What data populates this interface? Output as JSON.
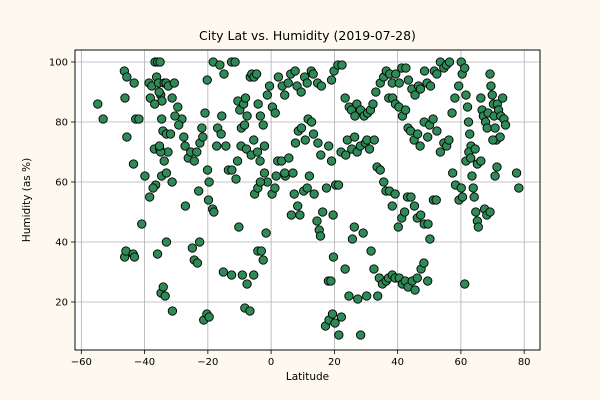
{
  "chart_data": {
    "type": "scatter",
    "title": "City Lat vs. Humidity (2019-07-28)",
    "xlabel": "Latitude",
    "ylabel": "Humidity (as %)",
    "xlim": [
      -62,
      85
    ],
    "ylim": [
      4,
      104
    ],
    "xticks": [
      -60,
      -40,
      -20,
      0,
      20,
      40,
      60,
      80
    ],
    "yticks": [
      20,
      40,
      60,
      80,
      100
    ],
    "xtick_labels": [
      "−60",
      "−40",
      "−20",
      "0",
      "20",
      "40",
      "60",
      "80"
    ],
    "ytick_labels": [
      "20",
      "40",
      "60",
      "80",
      "100"
    ],
    "grid": true,
    "marker_color": "#2e8b57",
    "marker_edge": "#000000",
    "points": [
      [
        -54.8,
        86
      ],
      [
        -53.1,
        81
      ],
      [
        -46.4,
        97
      ],
      [
        -45.6,
        95
      ],
      [
        -46.2,
        88
      ],
      [
        -45.6,
        75
      ],
      [
        -43.3,
        93
      ],
      [
        -42.8,
        81
      ],
      [
        -43.5,
        66
      ],
      [
        -41.8,
        81
      ],
      [
        -40.9,
        46
      ],
      [
        -46.3,
        35
      ],
      [
        -45.9,
        37
      ],
      [
        -43.6,
        36
      ],
      [
        -43.2,
        35
      ],
      [
        -39.9,
        62
      ],
      [
        -38.6,
        93
      ],
      [
        -38.2,
        88
      ],
      [
        -37.7,
        92
      ],
      [
        -36.7,
        100
      ],
      [
        -35.9,
        100
      ],
      [
        -35.1,
        100
      ],
      [
        -36.2,
        95
      ],
      [
        -35.6,
        93
      ],
      [
        -34.9,
        89
      ],
      [
        -34.5,
        87
      ],
      [
        -33.8,
        93
      ],
      [
        -33.2,
        93
      ],
      [
        -32.5,
        92
      ],
      [
        -31.3,
        88
      ],
      [
        -30.6,
        93
      ],
      [
        -29.5,
        85
      ],
      [
        -28.2,
        81
      ],
      [
        -36.8,
        86
      ],
      [
        -35.4,
        90
      ],
      [
        -34.6,
        81
      ],
      [
        -34.2,
        77
      ],
      [
        -33.1,
        76
      ],
      [
        -32.6,
        70
      ],
      [
        -31.8,
        76
      ],
      [
        -30.4,
        82
      ],
      [
        -29.2,
        79
      ],
      [
        -27.6,
        75
      ],
      [
        -27.2,
        72
      ],
      [
        -26.2,
        68
      ],
      [
        -25.4,
        70
      ],
      [
        -24.3,
        67
      ],
      [
        -23.5,
        70
      ],
      [
        -22.5,
        73
      ],
      [
        -21.9,
        78
      ],
      [
        -36.9,
        71
      ],
      [
        -35.2,
        71
      ],
      [
        -34.9,
        70
      ],
      [
        -34.6,
        62
      ],
      [
        -33.1,
        63
      ],
      [
        -31.3,
        60
      ],
      [
        -36.5,
        59
      ],
      [
        -35.3,
        72
      ],
      [
        -33.8,
        67
      ],
      [
        -38.4,
        55
      ],
      [
        -37.3,
        58
      ],
      [
        -35.9,
        36
      ],
      [
        -34.8,
        23
      ],
      [
        -34.1,
        25
      ],
      [
        -33.5,
        22
      ],
      [
        -31.2,
        17
      ],
      [
        -33.1,
        40
      ],
      [
        -27.1,
        52
      ],
      [
        -24.9,
        38
      ],
      [
        -24.3,
        34
      ],
      [
        -23.3,
        33
      ],
      [
        -22.6,
        40
      ],
      [
        -22.9,
        57
      ],
      [
        -21.6,
        75
      ],
      [
        -20.9,
        83
      ],
      [
        -20.2,
        94
      ],
      [
        -20.1,
        64
      ],
      [
        -19.6,
        60
      ],
      [
        -19.8,
        54
      ],
      [
        -18.5,
        51
      ],
      [
        -18.1,
        50
      ],
      [
        -17.2,
        72
      ],
      [
        -16.9,
        78
      ],
      [
        -15.6,
        82
      ],
      [
        -21.3,
        14
      ],
      [
        -20.3,
        16
      ],
      [
        -19.6,
        15
      ],
      [
        -15.1,
        30
      ],
      [
        -12.5,
        29
      ],
      [
        -10.2,
        45
      ],
      [
        -9.1,
        29
      ],
      [
        -8.3,
        18
      ],
      [
        -6.7,
        17
      ],
      [
        -7.6,
        26
      ],
      [
        -5.5,
        29
      ],
      [
        -4.2,
        37
      ],
      [
        -3.1,
        37
      ],
      [
        -2.5,
        34
      ],
      [
        -18.3,
        100
      ],
      [
        -16.2,
        99
      ],
      [
        -14.9,
        96
      ],
      [
        -12.5,
        100
      ],
      [
        -11.4,
        100
      ],
      [
        -10.5,
        87
      ],
      [
        -9.9,
        84
      ],
      [
        -9.4,
        78
      ],
      [
        -8.7,
        86
      ],
      [
        -8.1,
        88
      ],
      [
        -7.6,
        82
      ],
      [
        -6.6,
        95
      ],
      [
        -6.1,
        96
      ],
      [
        -5.4,
        95
      ],
      [
        -4.6,
        96
      ],
      [
        -4.1,
        86
      ],
      [
        -3.4,
        82
      ],
      [
        -2.5,
        79
      ],
      [
        -2.1,
        72
      ],
      [
        -1.2,
        89
      ],
      [
        -0.5,
        92
      ],
      [
        0.4,
        85
      ],
      [
        1.3,
        83
      ],
      [
        2.3,
        95
      ],
      [
        3.5,
        92
      ],
      [
        4.3,
        89
      ],
      [
        5.4,
        93
      ],
      [
        6.2,
        96
      ],
      [
        7.6,
        97
      ],
      [
        8.2,
        92
      ],
      [
        9.5,
        90
      ],
      [
        10.6,
        95
      ],
      [
        11.4,
        93
      ],
      [
        12.7,
        97
      ],
      [
        13.3,
        96
      ],
      [
        14.7,
        93
      ],
      [
        15.9,
        92
      ],
      [
        -15.8,
        76
      ],
      [
        -14.3,
        72
      ],
      [
        -13.5,
        64
      ],
      [
        -12.4,
        64
      ],
      [
        -11.1,
        61
      ],
      [
        -10.6,
        67
      ],
      [
        -9.5,
        72
      ],
      [
        -8.4,
        79
      ],
      [
        -7.8,
        71
      ],
      [
        -6.3,
        69
      ],
      [
        -5.5,
        74
      ],
      [
        -4.3,
        70
      ],
      [
        -3.5,
        67
      ],
      [
        -2.1,
        63
      ],
      [
        -1.2,
        60
      ],
      [
        0.3,
        56
      ],
      [
        1.2,
        58
      ],
      [
        2.1,
        67
      ],
      [
        3.3,
        67
      ],
      [
        4.5,
        62
      ],
      [
        5.6,
        68
      ],
      [
        6.9,
        63
      ],
      [
        7.7,
        73
      ],
      [
        8.6,
        77
      ],
      [
        9.6,
        78
      ],
      [
        10.8,
        74
      ],
      [
        11.7,
        81
      ],
      [
        12.8,
        80
      ],
      [
        13.4,
        76
      ],
      [
        14.8,
        73
      ],
      [
        15.7,
        69
      ],
      [
        -5.2,
        56
      ],
      [
        -4.2,
        58
      ],
      [
        -3.4,
        60
      ],
      [
        -1.6,
        43
      ],
      [
        1.6,
        62
      ],
      [
        4.3,
        63
      ],
      [
        6.4,
        49
      ],
      [
        7.3,
        56
      ],
      [
        8.4,
        52
      ],
      [
        9.1,
        49
      ],
      [
        10.3,
        57
      ],
      [
        11.4,
        58
      ],
      [
        12.1,
        62
      ],
      [
        13.6,
        56
      ],
      [
        14.5,
        47
      ],
      [
        15.2,
        44
      ],
      [
        15.6,
        42
      ],
      [
        16.3,
        50
      ],
      [
        17.5,
        58
      ],
      [
        18.2,
        72
      ],
      [
        19.1,
        67
      ],
      [
        17.2,
        12
      ],
      [
        18.3,
        14
      ],
      [
        19.4,
        16
      ],
      [
        20.2,
        13
      ],
      [
        21.4,
        9
      ],
      [
        22.2,
        15
      ],
      [
        23.4,
        31
      ],
      [
        24.6,
        22
      ],
      [
        25.7,
        41
      ],
      [
        26.3,
        45
      ],
      [
        27.4,
        21
      ],
      [
        28.3,
        9
      ],
      [
        29.1,
        43
      ],
      [
        30.2,
        22
      ],
      [
        31.6,
        37
      ],
      [
        32.5,
        31
      ],
      [
        33.7,
        22
      ],
      [
        34.2,
        28
      ],
      [
        35.2,
        26
      ],
      [
        36.4,
        27
      ],
      [
        18.1,
        27
      ],
      [
        18.9,
        27
      ],
      [
        19.7,
        35
      ],
      [
        19.6,
        49
      ],
      [
        20.4,
        59
      ],
      [
        21.3,
        59
      ],
      [
        22.1,
        70
      ],
      [
        23.6,
        69
      ],
      [
        24.1,
        74
      ],
      [
        25.5,
        71
      ],
      [
        26.4,
        75
      ],
      [
        27.2,
        70
      ],
      [
        28.2,
        72
      ],
      [
        29.8,
        73
      ],
      [
        30.3,
        74
      ],
      [
        31.1,
        71
      ],
      [
        32.6,
        74
      ],
      [
        33.5,
        65
      ],
      [
        34.5,
        64
      ],
      [
        35.6,
        60
      ],
      [
        19.1,
        94
      ],
      [
        19.9,
        97
      ],
      [
        21.1,
        99
      ],
      [
        22.4,
        99
      ],
      [
        23.4,
        88
      ],
      [
        24.7,
        85
      ],
      [
        25.4,
        84
      ],
      [
        26.5,
        82
      ],
      [
        27.1,
        86
      ],
      [
        28.3,
        84
      ],
      [
        29.4,
        82
      ],
      [
        30.5,
        83
      ],
      [
        31.4,
        84
      ],
      [
        32.2,
        86
      ],
      [
        33.1,
        90
      ],
      [
        34.5,
        93
      ],
      [
        35.6,
        95
      ],
      [
        36.4,
        97
      ],
      [
        37.5,
        96
      ],
      [
        38.3,
        93
      ],
      [
        39.4,
        96
      ],
      [
        40.5,
        93
      ],
      [
        41.3,
        98
      ],
      [
        42.6,
        98
      ],
      [
        43.4,
        94
      ],
      [
        44.5,
        91
      ],
      [
        45.5,
        89
      ],
      [
        46.6,
        92
      ],
      [
        47.2,
        91
      ],
      [
        48.5,
        97
      ],
      [
        49.3,
        93
      ],
      [
        50.4,
        92
      ],
      [
        51.6,
        97
      ],
      [
        52.4,
        96
      ],
      [
        53.5,
        100
      ],
      [
        54.6,
        98
      ],
      [
        55.4,
        99
      ],
      [
        56.4,
        100
      ],
      [
        37.2,
        88
      ],
      [
        38.4,
        88
      ],
      [
        39.3,
        86
      ],
      [
        40.4,
        85
      ],
      [
        41.5,
        82
      ],
      [
        42.5,
        84
      ],
      [
        43.3,
        78
      ],
      [
        44.1,
        77
      ],
      [
        45.2,
        74
      ],
      [
        46.3,
        76
      ],
      [
        47.1,
        72
      ],
      [
        48.4,
        80
      ],
      [
        49.5,
        75
      ],
      [
        50.1,
        79
      ],
      [
        51.2,
        81
      ],
      [
        52.4,
        77
      ],
      [
        53.5,
        70
      ],
      [
        54.6,
        73
      ],
      [
        55.5,
        72
      ],
      [
        56.2,
        74
      ],
      [
        36.3,
        57
      ],
      [
        37.4,
        57
      ],
      [
        38.3,
        52
      ],
      [
        39.2,
        56
      ],
      [
        40.2,
        45
      ],
      [
        41.3,
        48
      ],
      [
        42.2,
        50
      ],
      [
        43.1,
        55
      ],
      [
        44.2,
        55
      ],
      [
        45.3,
        52
      ],
      [
        46.2,
        48
      ],
      [
        47.3,
        49
      ],
      [
        48.4,
        46
      ],
      [
        49.6,
        46
      ],
      [
        50.2,
        41
      ],
      [
        51.3,
        54
      ],
      [
        52.2,
        54
      ],
      [
        37.1,
        28
      ],
      [
        38.3,
        29
      ],
      [
        39.2,
        28
      ],
      [
        40.5,
        28
      ],
      [
        41.5,
        26
      ],
      [
        42.4,
        27
      ],
      [
        43.3,
        25
      ],
      [
        44.6,
        27
      ],
      [
        45.5,
        24
      ],
      [
        46.2,
        28
      ],
      [
        47.4,
        31
      ],
      [
        48.3,
        33
      ],
      [
        49.5,
        27
      ],
      [
        57.2,
        83
      ],
      [
        58.1,
        88
      ],
      [
        59.3,
        92
      ],
      [
        60.1,
        100
      ],
      [
        60.4,
        96
      ],
      [
        61.2,
        98
      ],
      [
        61.6,
        89
      ],
      [
        62.1,
        85
      ],
      [
        62.4,
        80
      ],
      [
        62.8,
        76
      ],
      [
        63.2,
        72
      ],
      [
        63.5,
        62
      ],
      [
        63.9,
        58
      ],
      [
        64.2,
        55
      ],
      [
        64.7,
        50
      ],
      [
        65.2,
        47
      ],
      [
        65.5,
        45
      ],
      [
        66.3,
        88
      ],
      [
        66.7,
        84
      ],
      [
        67.1,
        82
      ],
      [
        67.8,
        80
      ],
      [
        68.3,
        78
      ],
      [
        68.6,
        83
      ],
      [
        69.2,
        96
      ],
      [
        69.5,
        92
      ],
      [
        69.9,
        89
      ],
      [
        70.3,
        86
      ],
      [
        70.5,
        82
      ],
      [
        70.8,
        78
      ],
      [
        71.2,
        74
      ],
      [
        71.5,
        86
      ],
      [
        71.9,
        84
      ],
      [
        72.6,
        82
      ],
      [
        72.4,
        75
      ],
      [
        73.2,
        88
      ],
      [
        73.6,
        81
      ],
      [
        74.1,
        79
      ],
      [
        57.4,
        63
      ],
      [
        58.3,
        59
      ],
      [
        59.4,
        54
      ],
      [
        60.1,
        58
      ],
      [
        60.5,
        55
      ],
      [
        61.2,
        26
      ],
      [
        61.6,
        67
      ],
      [
        62.5,
        70
      ],
      [
        63.1,
        68
      ],
      [
        64.5,
        71
      ],
      [
        65.2,
        66
      ],
      [
        66.3,
        67
      ],
      [
        67.5,
        51
      ],
      [
        68.2,
        49
      ],
      [
        69.2,
        50
      ],
      [
        70.1,
        74
      ],
      [
        70.8,
        62
      ],
      [
        71.4,
        65
      ],
      [
        77.6,
        63
      ],
      [
        78.3,
        58
      ]
    ]
  }
}
